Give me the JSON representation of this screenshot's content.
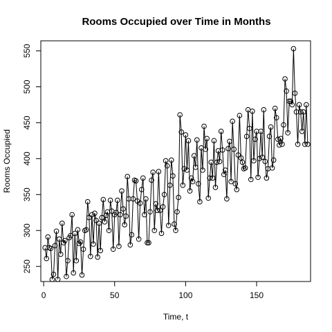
{
  "chart_data": {
    "type": "line",
    "title": "Rooms Occupied over Time in Months",
    "xlabel": "Time, t",
    "ylabel": "Rooms Occupied",
    "xlim": [
      -2,
      188
    ],
    "ylim": [
      229,
      564
    ],
    "x_ticks": [
      0,
      50,
      100,
      150
    ],
    "y_ticks": [
      250,
      300,
      350,
      400,
      450,
      500,
      550
    ],
    "grid": false,
    "markers": "open-circle",
    "series": [
      {
        "x": [
          1,
          2,
          3,
          4,
          5,
          6,
          7,
          8,
          9,
          10,
          11,
          12,
          13,
          14,
          15,
          16,
          17,
          18,
          19,
          20,
          21,
          22,
          23,
          24,
          25,
          26,
          27,
          28,
          29,
          30,
          31,
          32,
          33,
          34,
          35,
          36,
          37,
          38,
          39,
          40,
          41,
          42,
          43,
          44,
          45,
          46,
          47,
          48,
          49,
          50,
          51,
          52,
          53,
          54,
          55,
          56,
          57,
          58,
          59,
          60,
          61,
          62,
          63,
          64,
          65,
          66,
          67,
          68,
          69,
          70,
          71,
          72,
          73,
          74,
          75,
          76,
          77,
          78,
          79,
          80,
          81,
          82,
          83,
          84,
          85,
          86,
          87,
          88,
          89,
          90,
          91,
          92,
          93,
          94,
          95,
          96,
          97,
          98,
          99,
          100,
          101,
          102,
          103,
          104,
          105,
          106,
          107,
          108,
          109,
          110,
          111,
          112,
          113,
          114,
          115,
          116,
          117,
          118,
          119,
          120,
          121,
          122,
          123,
          124,
          125,
          126,
          127,
          128,
          129,
          130,
          131,
          132,
          133,
          134,
          135,
          136,
          137,
          138,
          139,
          140,
          141,
          142,
          143,
          144,
          145,
          146,
          147,
          148,
          149,
          150,
          151,
          152,
          153,
          154,
          155,
          156,
          157,
          158,
          159,
          160,
          161,
          162,
          163,
          164,
          165,
          166,
          167,
          168,
          169,
          170,
          171,
          172,
          173,
          174,
          175,
          176,
          177,
          178,
          179,
          180,
          181,
          182,
          183,
          184,
          185,
          186
        ],
        "values": [
          276,
          261,
          291,
          276,
          275,
          232,
          239,
          279,
          299,
          232,
          288,
          267,
          310,
          283,
          286,
          236,
          258,
          290,
          293,
          322,
          241,
          296,
          258,
          301,
          282,
          284,
          238,
          274,
          300,
          301,
          340,
          318,
          264,
          322,
          281,
          324,
          314,
          263,
          310,
          272,
          318,
          343,
          312,
          321,
          326,
          300,
          342,
          327,
          274,
          322,
          325,
          342,
          278,
          322,
          355,
          330,
          308,
          320,
          375,
          344,
          280,
          294,
          344,
          370,
          369,
          341,
          288,
          338,
          357,
          373,
          322,
          344,
          283,
          283,
          326,
          370,
          381,
          300,
          337,
          328,
          382,
          328,
          296,
          333,
          350,
          397,
          390,
          307,
          363,
          398,
          376,
          309,
          300,
          326,
          346,
          461,
          437,
          363,
          386,
          433,
          384,
          425,
          355,
          373,
          368,
          404,
          388,
          426,
          365,
          340,
          415,
          384,
          445,
          413,
          428,
          345,
          373,
          395,
          373,
          425,
          360,
          395,
          411,
          396,
          438,
          412,
          378,
          384,
          344,
          414,
          424,
          368,
          452,
          413,
          365,
          357,
          405,
          460,
          401,
          395,
          386,
          387,
          431,
          468,
          442,
          371,
          466,
          397,
          427,
          438,
          374,
          400,
          438,
          402,
          468,
          396,
          373,
          386,
          431,
          444,
          387,
          398,
          470,
          457,
          427,
          419,
          428,
          420,
          447,
          511,
          494,
          436,
          480,
          480,
          475,
          553,
          491,
          465,
          420,
          475,
          465,
          438,
          465,
          420,
          475,
          420
        ]
      }
    ]
  }
}
